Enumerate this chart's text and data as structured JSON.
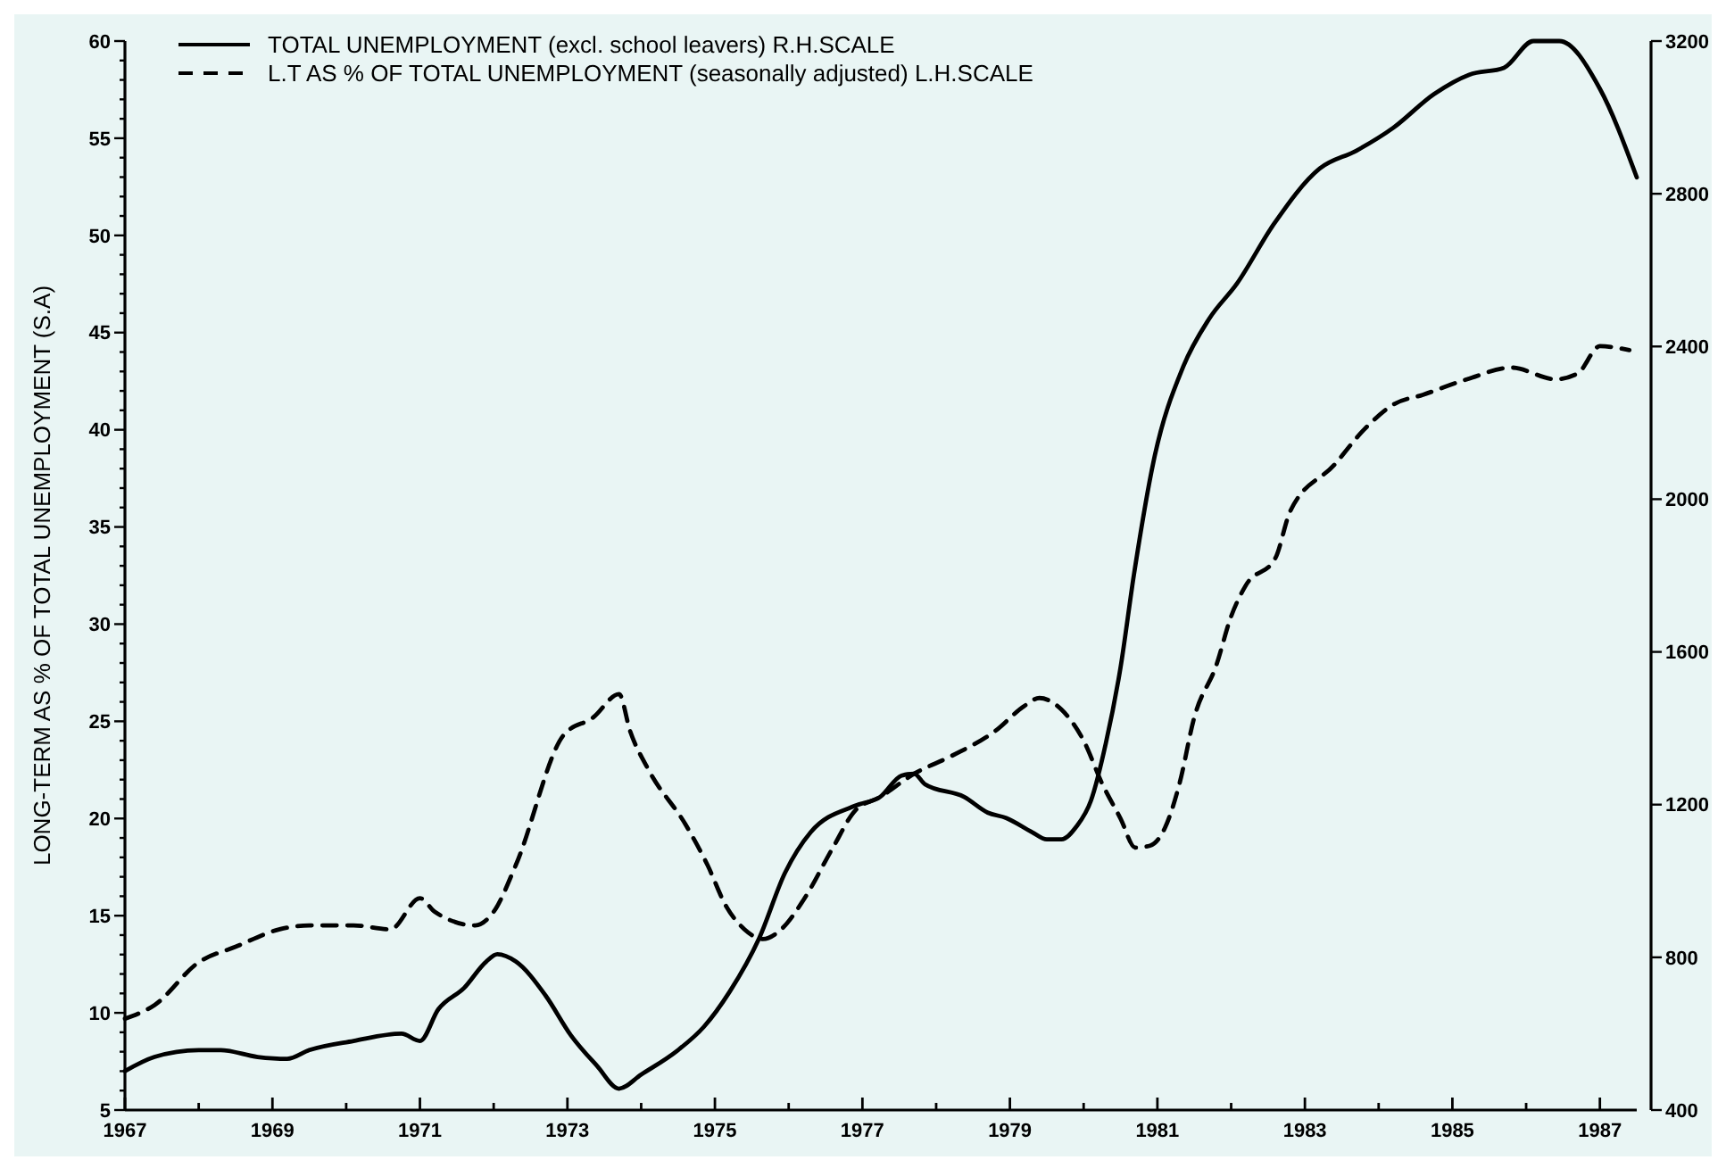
{
  "chart_data": {
    "type": "line",
    "ylabel": "LONG-TERM AS % OF TOTAL UNEMPLOYMENT (S.A)",
    "xlim": [
      1967,
      1987.5
    ],
    "xticks": [
      1967,
      {
        "value": 1968,
        "label": null
      },
      1969,
      {
        "value": 1970,
        "label": null
      },
      1971,
      {
        "value": 1972,
        "label": null
      },
      1973,
      {
        "value": 1974,
        "label": null
      },
      1975,
      {
        "value": 1976,
        "label": null
      },
      1977,
      {
        "value": 1978,
        "label": null
      },
      1979,
      {
        "value": 1980,
        "label": null
      },
      1981,
      {
        "value": 1982,
        "label": null
      },
      1983,
      {
        "value": 1984,
        "label": null
      },
      1985,
      {
        "value": 1986,
        "label": null
      },
      1987
    ],
    "ylim": [
      5,
      60
    ],
    "yticks": [
      5,
      {
        "value": 6,
        "label": null
      },
      {
        "value": 7,
        "label": null
      },
      {
        "value": 8,
        "label": null
      },
      {
        "value": 9,
        "label": null
      },
      10,
      {
        "value": 11,
        "label": null
      },
      {
        "value": 12,
        "label": null
      },
      {
        "value": 13,
        "label": null
      },
      {
        "value": 14,
        "label": null
      },
      15,
      {
        "value": 16,
        "label": null
      },
      {
        "value": 17,
        "label": null
      },
      {
        "value": 18,
        "label": null
      },
      {
        "value": 19,
        "label": null
      },
      20,
      {
        "value": 21,
        "label": null
      },
      {
        "value": 22,
        "label": null
      },
      {
        "value": 23,
        "label": null
      },
      {
        "value": 24,
        "label": null
      },
      25,
      {
        "value": 26,
        "label": null
      },
      {
        "value": 27,
        "label": null
      },
      {
        "value": 28,
        "label": null
      },
      {
        "value": 29,
        "label": null
      },
      30,
      {
        "value": 31,
        "label": null
      },
      {
        "value": 32,
        "label": null
      },
      {
        "value": 33,
        "label": null
      },
      {
        "value": 34,
        "label": null
      },
      35,
      {
        "value": 36,
        "label": null
      },
      {
        "value": 37,
        "label": null
      },
      {
        "value": 38,
        "label": null
      },
      {
        "value": 39,
        "label": null
      },
      40,
      {
        "value": 41,
        "label": null
      },
      {
        "value": 42,
        "label": null
      },
      {
        "value": 43,
        "label": null
      },
      {
        "value": 44,
        "label": null
      },
      45,
      {
        "value": 46,
        "label": null
      },
      {
        "value": 47,
        "label": null
      },
      {
        "value": 48,
        "label": null
      },
      {
        "value": 49,
        "label": null
      },
      50,
      {
        "value": 51,
        "label": null
      },
      {
        "value": 52,
        "label": null
      },
      {
        "value": 53,
        "label": null
      },
      {
        "value": 54,
        "label": null
      },
      55,
      {
        "value": 56,
        "label": null
      },
      {
        "value": 57,
        "label": null
      },
      {
        "value": 58,
        "label": null
      },
      {
        "value": 59,
        "label": null
      },
      60
    ],
    "y2lim": [
      400,
      3200
    ],
    "y2ticks": [
      400,
      800,
      1200,
      1600,
      2000,
      2400,
      2800,
      3200
    ],
    "legend": "top left",
    "grid": false,
    "series": [
      {
        "name": "TOTAL UNEMPLOYMENT (excl. school leavers) R.H.SCALE",
        "color": "#000000",
        "axis": "y2",
        "line_style": "solid",
        "x": [
          1967.0,
          1967.4,
          1968.0,
          1968.3,
          1968.8,
          1969.2,
          1969.5,
          1970.1,
          1970.75,
          1971.0,
          1971.25,
          1971.6,
          1971.9,
          1972.05,
          1972.3,
          1972.7,
          1973.05,
          1973.4,
          1973.7,
          1974.0,
          1974.5,
          1974.85,
          1975.2,
          1975.6,
          1975.95,
          1976.3,
          1976.9,
          1977.24,
          1977.53,
          1977.7,
          1977.85,
          1978.38,
          1978.7,
          1978.95,
          1979.3,
          1979.5,
          1979.7,
          1979.9,
          1980.1,
          1980.3,
          1980.5,
          1980.68,
          1980.95,
          1981.35,
          1981.7,
          1982.08,
          1982.57,
          1983.2,
          1983.7,
          1984.2,
          1984.75,
          1985.23,
          1985.7,
          1986.1,
          1986.45,
          1987.0,
          1987.5
        ],
        "values": [
          502,
          539,
          557,
          557,
          539,
          534,
          557,
          581,
          600,
          581,
          664,
          720,
          789,
          808,
          789,
          701,
          595,
          516,
          456,
          493,
          557,
          618,
          710,
          850,
          1021,
          1128,
          1197,
          1220,
          1276,
          1281,
          1253,
          1220,
          1179,
          1165,
          1128,
          1109,
          1109,
          1142,
          1211,
          1360,
          1559,
          1800,
          2101,
          2347,
          2472,
          2565,
          2718,
          2866,
          2913,
          2973,
          3061,
          3112,
          3130,
          3200,
          3200,
          3075,
          2843
        ]
      },
      {
        "name": "L.T AS % OF TOTAL UNEMPLOYMENT (seasonally adjusted) L.H.SCALE",
        "color": "#000000",
        "axis": "y",
        "line_style": "dashed",
        "x": [
          1967.0,
          1967.4,
          1968.0,
          1968.5,
          1969.1,
          1969.5,
          1970.1,
          1970.6,
          1971.0,
          1971.2,
          1971.75,
          1972.0,
          1972.3,
          1972.95,
          1973.35,
          1973.7,
          1973.85,
          1974.1,
          1974.6,
          1974.9,
          1975.15,
          1975.4,
          1975.65,
          1975.9,
          1976.2,
          1976.6,
          1976.9,
          1977.24,
          1977.7,
          1978.2,
          1978.8,
          1979.2,
          1979.4,
          1979.7,
          1980.0,
          1980.25,
          1980.5,
          1980.7,
          1980.9,
          1981.1,
          1981.3,
          1981.5,
          1981.8,
          1982.0,
          1982.2,
          1982.6,
          1982.8,
          1983.4,
          1983.8,
          1984.2,
          1984.6,
          1985.2,
          1985.8,
          1986.4,
          1986.7,
          1987.0,
          1987.4
        ],
        "values": [
          9.7,
          10.4,
          12.6,
          13.4,
          14.3,
          14.5,
          14.5,
          14.3,
          15.9,
          15.2,
          14.5,
          15.2,
          17.6,
          24.3,
          25.2,
          26.4,
          24.5,
          22.5,
          19.7,
          17.6,
          15.5,
          14.3,
          13.8,
          14.3,
          15.8,
          18.5,
          20.4,
          21.1,
          22.3,
          23.2,
          24.5,
          25.8,
          26.2,
          25.6,
          24.0,
          21.8,
          20.0,
          18.5,
          18.6,
          19.5,
          21.8,
          25.2,
          27.9,
          30.4,
          32.0,
          33.4,
          35.8,
          38.2,
          40.0,
          41.3,
          41.8,
          42.6,
          43.2,
          42.6,
          42.9,
          44.3,
          44.1
        ]
      }
    ]
  }
}
